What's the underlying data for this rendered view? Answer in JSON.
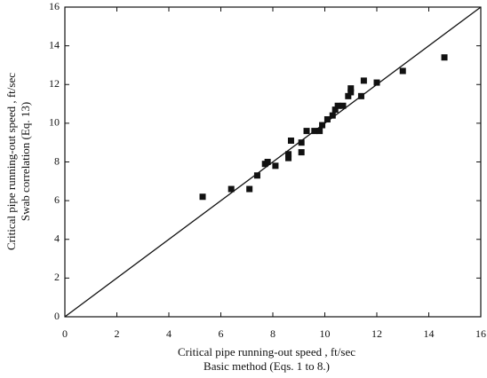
{
  "chart_data": {
    "type": "scatter",
    "xlabel": [
      "Critical pipe running-out speed , ft/sec",
      "Basic method (Eqs. 1 to 8.)"
    ],
    "ylabel": [
      "Critical pipe running-out speed , ft/sec",
      "Swab correlation (Eq. 13)"
    ],
    "color": "#111111",
    "x": [
      5.3,
      6.4,
      7.1,
      7.4,
      7.7,
      7.8,
      8.1,
      8.6,
      8.6,
      8.7,
      9.1,
      9.1,
      9.3,
      9.6,
      9.8,
      9.9,
      10.1,
      10.3,
      10.4,
      10.5,
      10.7,
      10.9,
      11.0,
      11.0,
      11.4,
      11.5,
      12.0,
      13.0,
      14.6
    ],
    "values": [
      6.2,
      6.6,
      6.6,
      7.3,
      7.9,
      8.0,
      7.8,
      8.2,
      8.4,
      9.1,
      8.5,
      9.0,
      9.6,
      9.6,
      9.6,
      9.9,
      10.2,
      10.4,
      10.7,
      10.9,
      10.9,
      11.4,
      11.6,
      11.8,
      11.4,
      12.2,
      12.1,
      12.7,
      13.4
    ],
    "xlim": [
      0,
      16
    ],
    "ylim": [
      0,
      16
    ],
    "xticks": [
      0,
      2,
      4,
      6,
      8,
      10,
      12,
      14,
      16
    ],
    "yticks": [
      0,
      2,
      4,
      6,
      8,
      10,
      12,
      14,
      16
    ],
    "grid": false
  }
}
